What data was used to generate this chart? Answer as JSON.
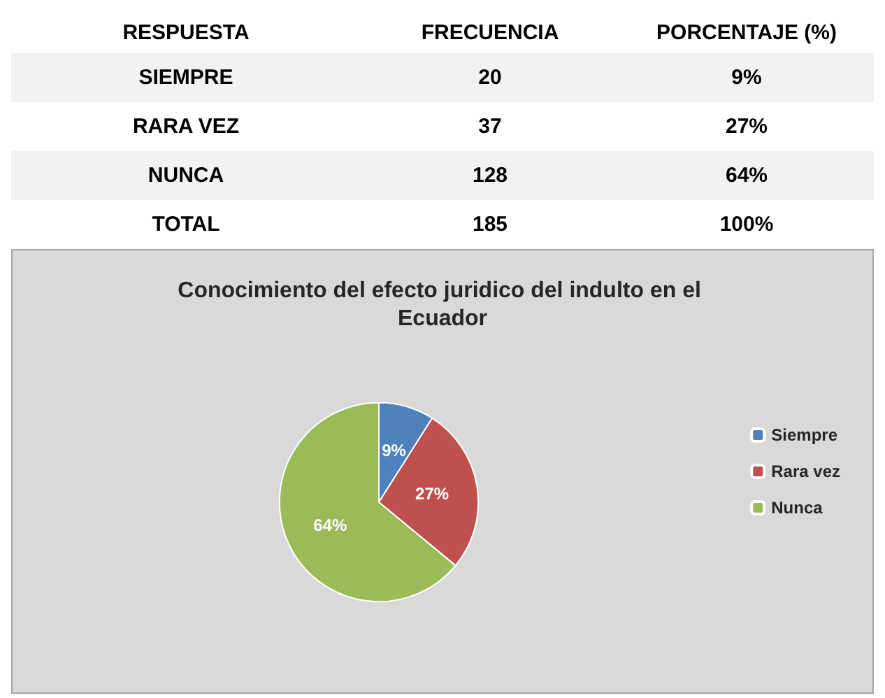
{
  "chart_data": [
    {
      "type": "other",
      "annotations": [
        "RESPUESTA",
        "FRECUENCIA",
        "PORCENTAJE (%)",
        "SIEMPRE",
        "20",
        "9%",
        "RARA VEZ",
        "37",
        "27%",
        "NUNCA",
        "128",
        "64%",
        "TOTAL",
        "185",
        "100%"
      ]
    },
    {
      "type": "pie",
      "title": "Conocimiento del efecto juridico del indulto en el Ecuador",
      "categories": [
        "Siempre",
        "Rara vez",
        "Nunca"
      ],
      "values": [
        9,
        27,
        64
      ],
      "colors": [
        "#4f81bd",
        "#c0504d",
        "#9bbb59"
      ],
      "value_labels": [
        "9%",
        "27%",
        "64%"
      ],
      "legend": "right"
    }
  ]
}
